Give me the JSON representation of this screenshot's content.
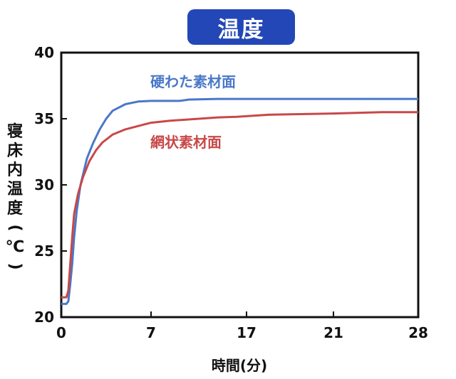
{
  "header": {
    "title": "温度"
  },
  "chart_data": {
    "type": "line",
    "title": "温度",
    "xlabel": "時間(分)",
    "ylabel": "寝床内温度(℃)",
    "xticks": [
      0,
      7,
      17,
      21,
      28
    ],
    "yticks": [
      20,
      25,
      30,
      35,
      40
    ],
    "ylim": [
      20,
      40
    ],
    "grid": false,
    "legend": "inline labels on lines",
    "series": [
      {
        "name": "硬わた素材面",
        "color": "#4a78c8",
        "points": [
          [
            0,
            21.0
          ],
          [
            0.4,
            21.0
          ],
          [
            0.55,
            21.2
          ],
          [
            0.7,
            22.5
          ],
          [
            0.85,
            24.0
          ],
          [
            1.0,
            26.0
          ],
          [
            1.2,
            28.0
          ],
          [
            1.5,
            30.0
          ],
          [
            2.0,
            32.0
          ],
          [
            2.5,
            33.2
          ],
          [
            3.0,
            34.2
          ],
          [
            3.5,
            35.0
          ],
          [
            4.0,
            35.6
          ],
          [
            5.0,
            36.1
          ],
          [
            6.0,
            36.3
          ],
          [
            7.0,
            36.35
          ],
          [
            10.0,
            36.35
          ],
          [
            11.0,
            36.45
          ],
          [
            14.0,
            36.5
          ],
          [
            17.0,
            36.5
          ],
          [
            20.0,
            36.5
          ],
          [
            24.0,
            36.5
          ],
          [
            28.0,
            36.5
          ]
        ]
      },
      {
        "name": "網状素材面",
        "color": "#c84848",
        "points": [
          [
            0,
            21.5
          ],
          [
            0.4,
            21.5
          ],
          [
            0.55,
            22.0
          ],
          [
            0.7,
            24.0
          ],
          [
            0.85,
            26.0
          ],
          [
            1.0,
            27.8
          ],
          [
            1.3,
            29.3
          ],
          [
            1.7,
            30.6
          ],
          [
            2.2,
            31.8
          ],
          [
            2.7,
            32.6
          ],
          [
            3.2,
            33.2
          ],
          [
            4.0,
            33.8
          ],
          [
            5.0,
            34.2
          ],
          [
            6.0,
            34.45
          ],
          [
            7.0,
            34.7
          ],
          [
            9.0,
            34.85
          ],
          [
            12.0,
            35.0
          ],
          [
            14.0,
            35.1
          ],
          [
            16.0,
            35.15
          ],
          [
            18.0,
            35.3
          ],
          [
            21.0,
            35.4
          ],
          [
            25.0,
            35.5
          ],
          [
            28.0,
            35.5
          ]
        ]
      }
    ]
  }
}
